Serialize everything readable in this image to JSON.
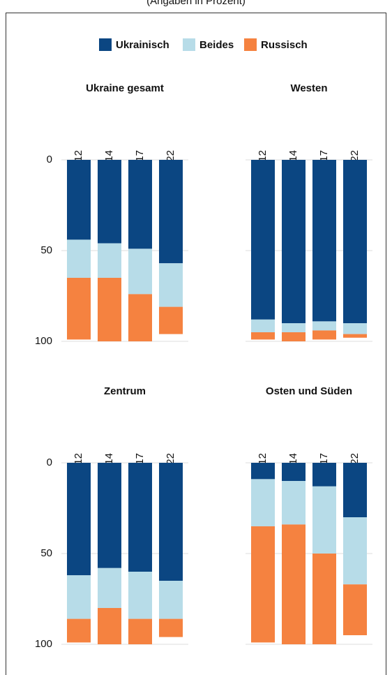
{
  "subtitle": "(Angaben in Prozent)",
  "chart_data": [
    {
      "type": "bar",
      "stacked": true,
      "title": "Ukraine gesamt",
      "categories": [
        "2012",
        "2014",
        "2017",
        "2022"
      ],
      "series": [
        {
          "name": "Ukrainisch",
          "color": "#0b4682",
          "values": [
            44,
            46,
            49,
            57
          ]
        },
        {
          "name": "Beides",
          "color": "#b7dce8",
          "values": [
            21,
            19,
            25,
            24
          ]
        },
        {
          "name": "Russisch",
          "color": "#f58240",
          "values": [
            34,
            35,
            26,
            15
          ]
        }
      ],
      "ylim": [
        0,
        100
      ],
      "yticks": [
        0,
        50,
        100
      ],
      "y_inverted": true,
      "grid": true
    },
    {
      "type": "bar",
      "stacked": true,
      "title": "Westen",
      "categories": [
        "2012",
        "2014",
        "2017",
        "2022"
      ],
      "series": [
        {
          "name": "Ukrainisch",
          "color": "#0b4682",
          "values": [
            88,
            90,
            89,
            90
          ]
        },
        {
          "name": "Beides",
          "color": "#b7dce8",
          "values": [
            7,
            5,
            5,
            6
          ]
        },
        {
          "name": "Russisch",
          "color": "#f58240",
          "values": [
            4,
            5,
            5,
            2
          ]
        }
      ],
      "ylim": [
        0,
        100
      ],
      "yticks": [
        0,
        50,
        100
      ],
      "y_inverted": true,
      "grid": true
    },
    {
      "type": "bar",
      "stacked": true,
      "title": "Zentrum",
      "categories": [
        "2012",
        "2014",
        "2017",
        "2022"
      ],
      "series": [
        {
          "name": "Ukrainisch",
          "color": "#0b4682",
          "values": [
            62,
            58,
            60,
            65
          ]
        },
        {
          "name": "Beides",
          "color": "#b7dce8",
          "values": [
            24,
            22,
            26,
            21
          ]
        },
        {
          "name": "Russisch",
          "color": "#f58240",
          "values": [
            13,
            20,
            14,
            10
          ]
        }
      ],
      "ylim": [
        0,
        100
      ],
      "yticks": [
        0,
        50,
        100
      ],
      "y_inverted": true,
      "grid": true
    },
    {
      "type": "bar",
      "stacked": true,
      "title": "Osten und Süden",
      "categories": [
        "2012",
        "2014",
        "2017",
        "2022"
      ],
      "series": [
        {
          "name": "Ukrainisch",
          "color": "#0b4682",
          "values": [
            9,
            10,
            13,
            30
          ]
        },
        {
          "name": "Beides",
          "color": "#b7dce8",
          "values": [
            26,
            24,
            37,
            37
          ]
        },
        {
          "name": "Russisch",
          "color": "#f58240",
          "values": [
            64,
            66,
            50,
            28
          ]
        }
      ],
      "ylim": [
        0,
        100
      ],
      "yticks": [
        0,
        50,
        100
      ],
      "y_inverted": true,
      "grid": true
    }
  ]
}
